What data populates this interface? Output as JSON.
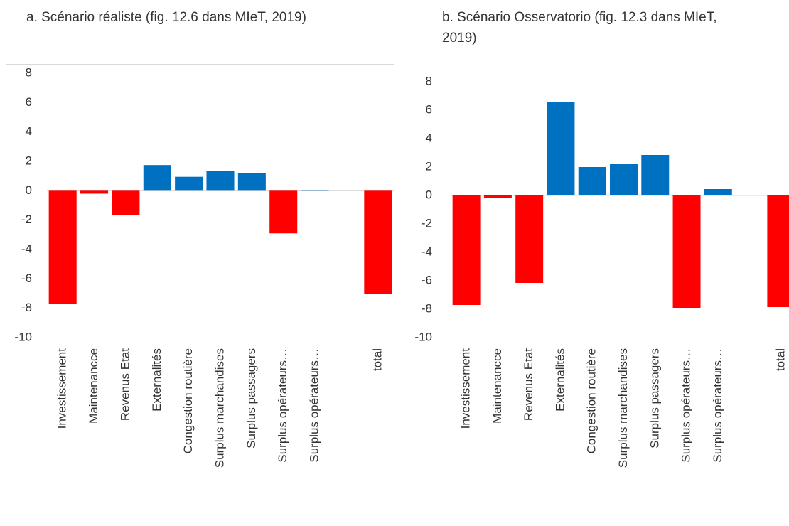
{
  "chart_data": [
    {
      "type": "bar",
      "title": "a. Scénario réaliste (fig. 12.6 dans MIeT, 2019)",
      "categories": [
        "Investissement",
        "Maintenancce",
        "Revenus Etat",
        "Externalités",
        "Congestion routière",
        "Surplus marchandises",
        "Surplus passagers",
        "Surplus opérateurs…",
        "Surplus opérateurs…",
        null,
        "total"
      ],
      "values": [
        -7.7,
        -0.2,
        -1.65,
        1.75,
        0.95,
        1.35,
        1.2,
        -2.9,
        0.05,
        null,
        -7.0
      ],
      "positive_color": "#0070c0",
      "negative_color": "#ff0000",
      "ylim": [
        -10,
        8
      ],
      "yticks": [
        -10,
        -8,
        -6,
        -4,
        -2,
        0,
        2,
        4,
        6,
        8
      ],
      "grid": false
    },
    {
      "type": "bar",
      "title": "b. Scénario Osservatorio (fig. 12.3 dans MIeT, 2019)",
      "categories": [
        "Investissement",
        "Maintenancce",
        "Revenus Etat",
        "Externalités",
        "Congestion routière",
        "Surplus marchandises",
        "Surplus passagers",
        "Surplus opérateurs…",
        "Surplus opérateurs…",
        null,
        "total"
      ],
      "values": [
        -7.7,
        -0.2,
        -6.15,
        6.55,
        2.0,
        2.2,
        2.85,
        -7.95,
        0.45,
        null,
        -7.85
      ],
      "positive_color": "#0070c0",
      "negative_color": "#ff0000",
      "ylim": [
        -10,
        8
      ],
      "yticks": [
        -10,
        -8,
        -6,
        -4,
        -2,
        0,
        2,
        4,
        6,
        8
      ],
      "grid": false
    }
  ]
}
